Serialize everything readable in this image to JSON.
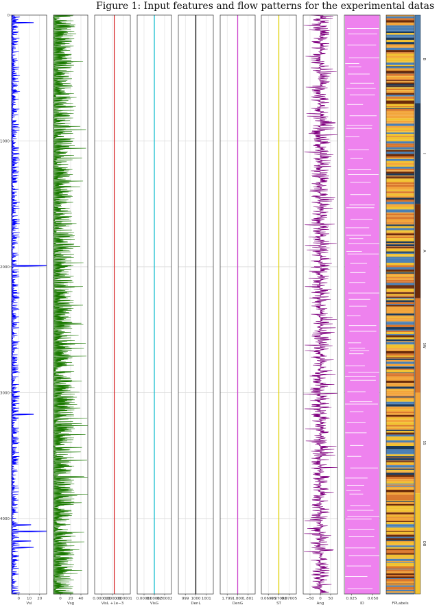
{
  "title": "Figure 1: Input features and flow patterns for the experimental datas",
  "chart_data": {
    "type": "line",
    "orientation": "vertical-strip-logs",
    "y_axis": {
      "range": [
        0,
        4600
      ],
      "ticks": [
        "0",
        "1000",
        "2000",
        "3000",
        "4000"
      ],
      "inverted": true,
      "grid": true
    },
    "panels": [
      {
        "name": "Vsl",
        "xlabel": "Vsl",
        "color": "#0000ff",
        "xlim": [
          0,
          27
        ],
        "xticks": [
          "0",
          "10",
          "20"
        ],
        "pattern": "spiky-low",
        "baseline": 1.5,
        "typical_max": 6,
        "spikes": [
          [
            60,
            17
          ],
          [
            1990,
            27
          ],
          [
            3170,
            17
          ],
          [
            4050,
            15
          ],
          [
            4100,
            27
          ],
          [
            4180,
            15
          ],
          [
            4230,
            17
          ]
        ]
      },
      {
        "name": "Vsg",
        "xlabel": "Vsg",
        "color": "#1a7a00",
        "xlim": [
          0,
          45
        ],
        "xticks": [
          "0",
          "20",
          "40"
        ],
        "pattern": "dense-noise",
        "typical_max": 40
      },
      {
        "name": "VisL",
        "xlabel": "VisL +1e−3",
        "color": "#d62728",
        "xlim": [
          0,
          1
        ],
        "xticks": [
          "0.000001",
          "0.000001",
          "0.000001"
        ],
        "pattern": "constant",
        "value": 0.55
      },
      {
        "name": "VisG",
        "xlabel": "VisG",
        "color": "#17becf",
        "xlim": [
          0,
          1
        ],
        "xticks": [
          "0.00001",
          "0.00002",
          "0.00002"
        ],
        "pattern": "constant",
        "value": 0.5
      },
      {
        "name": "DenL",
        "xlabel": "DenL",
        "color": "#000000",
        "xlim": [
          999,
          1001
        ],
        "xticks": [
          "999",
          "1000",
          "1001"
        ],
        "pattern": "constant",
        "value": 1000
      },
      {
        "name": "DenG",
        "xlabel": "DenG",
        "color": "#cc44cc",
        "xlim": [
          1.799,
          1.801
        ],
        "xticks": [
          "1.799",
          "1.800",
          "1.801"
        ],
        "pattern": "constant",
        "value": 1.8
      },
      {
        "name": "ST",
        "xlabel": "ST",
        "color": "#e0d000",
        "xlim": [
          0.06995,
          0.07005
        ],
        "xticks": [
          "0.06995",
          "0.07000",
          "0.07005"
        ],
        "pattern": "constant",
        "value": 0.07
      },
      {
        "name": "Ang",
        "xlabel": "Ang",
        "color": "#800080",
        "xlim": [
          -80,
          80
        ],
        "xticks": [
          "−50",
          "0",
          "50"
        ],
        "pattern": "dense-noise-centered",
        "typical_max": 80
      },
      {
        "name": "ID",
        "xlabel": "ID",
        "color": "#ee82ee",
        "xlim": [
          0.025,
          0.05
        ],
        "xticks": [
          "0.025",
          "0.050"
        ],
        "pattern": "filled-with-gaps"
      },
      {
        "name": "FPLabels",
        "xlabel": "FPLabels",
        "pattern": "categorical-stripes"
      }
    ],
    "legend": {
      "position": "right",
      "classes": [
        {
          "label": "B",
          "color": "#4a7fb5",
          "start": 0,
          "end": 700
        },
        {
          "label": "I",
          "color": "#1d3a5a",
          "start": 700,
          "end": 1500
        },
        {
          "label": "A",
          "color": "#6b2b0a",
          "start": 1500,
          "end": 2250
        },
        {
          "label": "SW",
          "color": "#d9772d",
          "start": 2250,
          "end": 3000
        },
        {
          "label": "SS",
          "color": "#f3a53a",
          "start": 3000,
          "end": 3800
        },
        {
          "label": "DB",
          "color": "#f2c230",
          "start": 3800,
          "end": 4600
        }
      ]
    }
  }
}
